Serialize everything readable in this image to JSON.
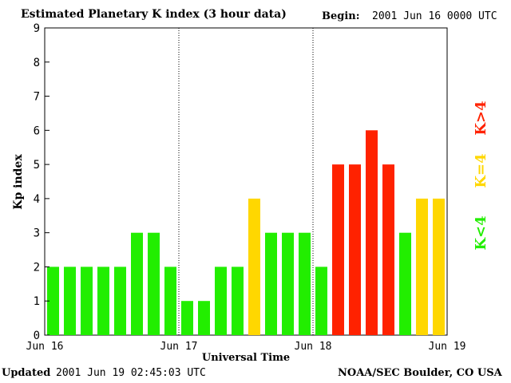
{
  "header": {
    "title": "Estimated Planetary K index (3 hour data)",
    "begin_label": "Begin:",
    "begin_value": "2001 Jun 16 0000 UTC"
  },
  "footer": {
    "updated_label": "Updated",
    "updated_value": "2001 Jun 19 02:45:03 UTC",
    "credit": "NOAA/SEC Boulder, CO USA"
  },
  "colors": {
    "low": "#22ee00",
    "mid": "#ffd700",
    "high": "#ff2200"
  },
  "legend": {
    "low": "K<4",
    "mid": "K=4",
    "high": "K>4"
  },
  "chart_data": {
    "type": "bar",
    "title": "Estimated Planetary K index (3 hour data)",
    "xlabel": "Universal Time",
    "ylabel": "Kp index",
    "ylim": [
      0,
      9
    ],
    "yticks": [
      0,
      1,
      2,
      3,
      4,
      5,
      6,
      7,
      8,
      9
    ],
    "xticks": [
      "Jun 16",
      "Jun 17",
      "Jun 18",
      "Jun 19"
    ],
    "day_separators": [
      "Jun 17",
      "Jun 18"
    ],
    "values": [
      2,
      2,
      2,
      2,
      2,
      3,
      3,
      2,
      1,
      1,
      2,
      2,
      4,
      3,
      3,
      3,
      2,
      5,
      5,
      6,
      5,
      3,
      4,
      4
    ]
  }
}
